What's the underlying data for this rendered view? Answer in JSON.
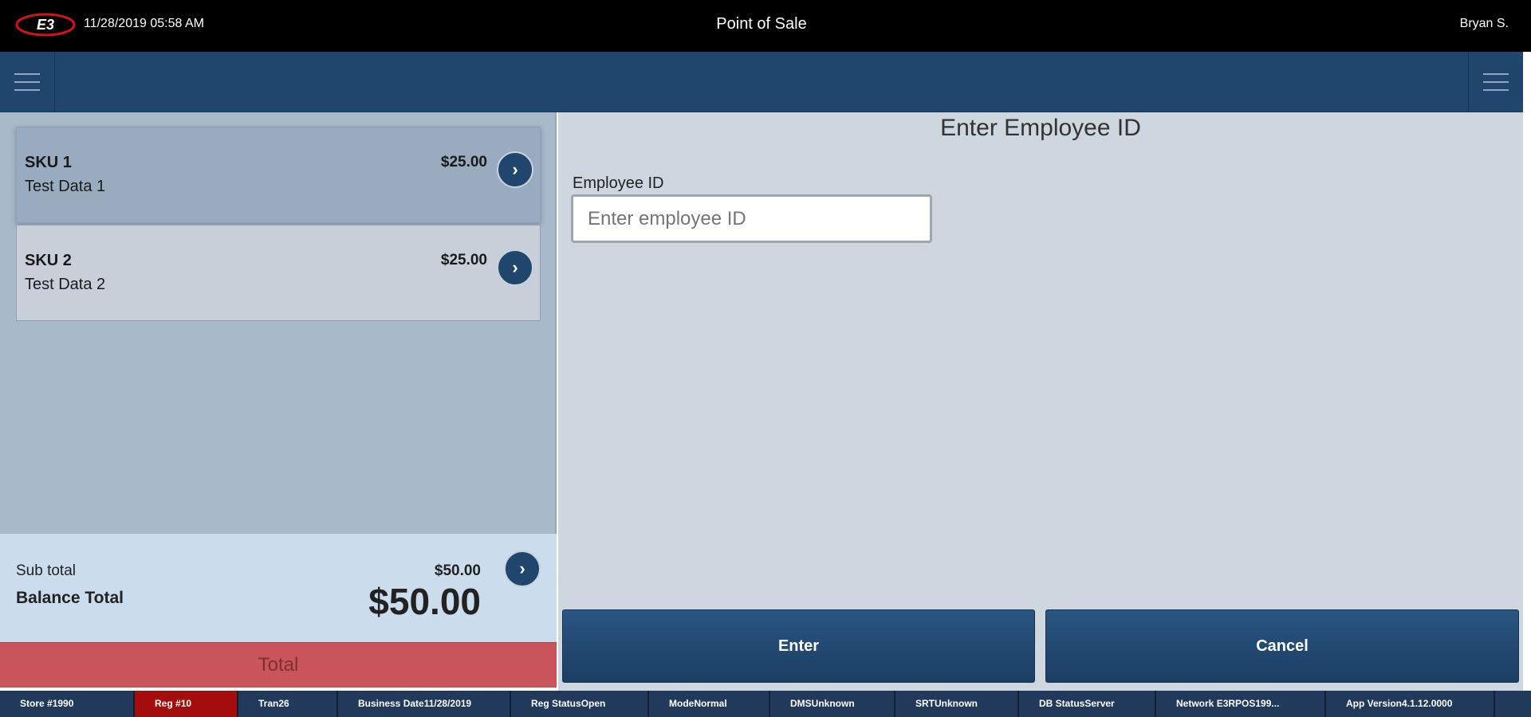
{
  "header": {
    "logo": "E3",
    "datetime": "11/28/2019 05:58 AM",
    "title": "Point of Sale",
    "user": "Bryan S."
  },
  "cart": {
    "items": [
      {
        "sku": "SKU 1",
        "description": "Test Data 1",
        "price": "$25.00"
      },
      {
        "sku": "SKU 2",
        "description": "Test Data 2",
        "price": "$25.00"
      }
    ],
    "subtotal_label": "Sub total",
    "subtotal": "$50.00",
    "balance_label": "Balance Total",
    "balance": "$50.00",
    "total_button": "Total"
  },
  "form": {
    "title": "Enter Employee ID",
    "field_label": "Employee ID",
    "placeholder": "Enter employee ID",
    "enter_button": "Enter",
    "cancel_button": "Cancel"
  },
  "status_bar": [
    {
      "label": "Store #",
      "value": "1990"
    },
    {
      "label": "Reg #",
      "value": "10"
    },
    {
      "label": "Tran",
      "value": "26"
    },
    {
      "label": "Business Date",
      "value": "11/28/2019"
    },
    {
      "label": "Reg Status",
      "value": "Open"
    },
    {
      "label": "Mode",
      "value": "Normal"
    },
    {
      "label": "DMS",
      "value": "Unknown"
    },
    {
      "label": "SRT",
      "value": "Unknown"
    },
    {
      "label": "DB Status",
      "value": "Server"
    },
    {
      "label": "Network ",
      "value": "E3RPOS199..."
    },
    {
      "label": "App Version",
      "value": "4.1.12.0000"
    }
  ]
}
